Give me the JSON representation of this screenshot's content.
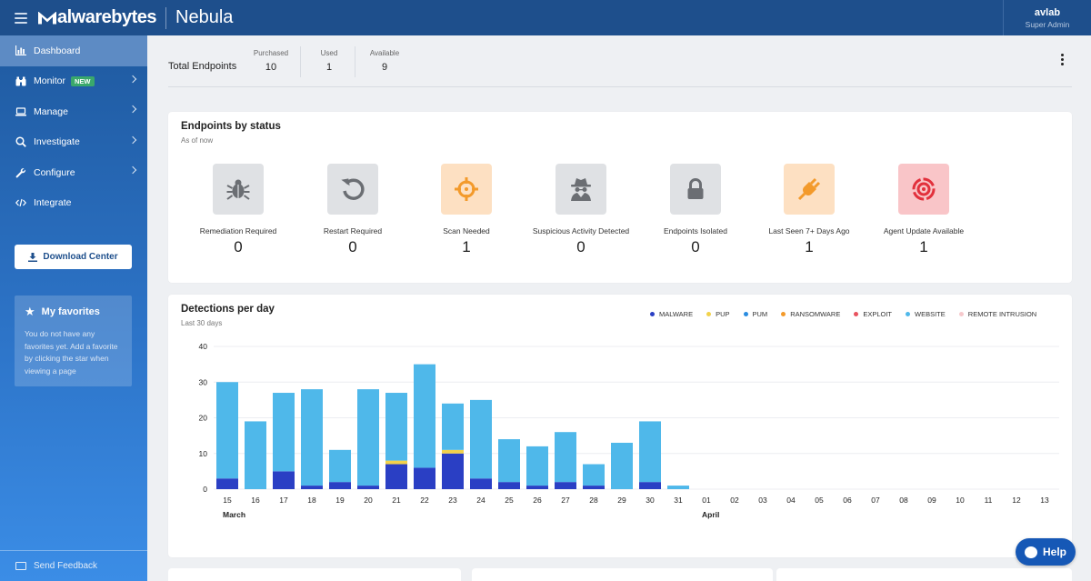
{
  "topbar": {
    "brand": "Malwarebytes",
    "brand_rest": "alwarebytes",
    "product": "Nebula",
    "user_name": "avlab",
    "user_role": "Super Admin"
  },
  "sidebar": {
    "items": [
      {
        "label": "Dashboard",
        "icon": "bar-chart-icon",
        "active": true
      },
      {
        "label": "Monitor",
        "icon": "binoculars-icon",
        "badge": "NEW"
      },
      {
        "label": "Manage",
        "icon": "laptop-icon"
      },
      {
        "label": "Investigate",
        "icon": "search-icon"
      },
      {
        "label": "Configure",
        "icon": "wrench-icon"
      },
      {
        "label": "Integrate",
        "icon": "code-icon"
      }
    ],
    "download_label": "Download Center",
    "favorites_title": "My favorites",
    "favorites_text": "You do not have any favorites yet. Add a favorite by clicking the star when viewing a page",
    "feedback_label": "Send Feedback"
  },
  "endpoints": {
    "title": "Total Endpoints",
    "purchased_label": "Purchased",
    "purchased_value": "10",
    "used_label": "Used",
    "used_value": "1",
    "available_label": "Available",
    "available_value": "9"
  },
  "status_card": {
    "title": "Endpoints by status",
    "subtitle": "As of now",
    "items": [
      {
        "label": "Remediation Required",
        "value": "0",
        "icon": "bug-icon",
        "bg": "#dfe1e4",
        "fg": "#6b6e73"
      },
      {
        "label": "Restart Required",
        "value": "0",
        "icon": "restart-icon",
        "bg": "#dfe1e4",
        "fg": "#6b6e73"
      },
      {
        "label": "Scan Needed",
        "value": "1",
        "icon": "crosshair-icon",
        "bg": "#fde0c2",
        "fg": "#f39a2b"
      },
      {
        "label": "Suspicious Activity Detected",
        "value": "0",
        "icon": "spy-icon",
        "bg": "#dfe1e4",
        "fg": "#6b6e73"
      },
      {
        "label": "Endpoints Isolated",
        "value": "0",
        "icon": "lock-icon",
        "bg": "#dfe1e4",
        "fg": "#6b6e73"
      },
      {
        "label": "Last Seen 7+ Days Ago",
        "value": "1",
        "icon": "plug-icon",
        "bg": "#fde0c2",
        "fg": "#f39a2b"
      },
      {
        "label": "Agent Update Available",
        "value": "1",
        "icon": "update-target-icon",
        "bg": "#f9c5c8",
        "fg": "#e2303c"
      }
    ]
  },
  "detections_card": {
    "title": "Detections per day",
    "subtitle": "Last 30 days"
  },
  "chart_data": {
    "type": "bar",
    "stacked": true,
    "categories": [
      "15",
      "16",
      "17",
      "18",
      "19",
      "20",
      "21",
      "22",
      "23",
      "24",
      "25",
      "26",
      "27",
      "28",
      "29",
      "30",
      "31",
      "01",
      "02",
      "03",
      "04",
      "05",
      "06",
      "07",
      "08",
      "09",
      "10",
      "11",
      "12",
      "13"
    ],
    "month_labels": [
      {
        "label": "March",
        "at": "15"
      },
      {
        "label": "April",
        "at": "01"
      }
    ],
    "ylim": [
      0,
      40
    ],
    "yticks": [
      0,
      10,
      20,
      30,
      40
    ],
    "grid": true,
    "legend_position": "top-right",
    "series": [
      {
        "name": "MALWARE",
        "color": "#2a3fc4",
        "values": [
          3,
          0,
          5,
          1,
          2,
          1,
          7,
          6,
          10,
          3,
          2,
          1,
          2,
          1,
          0,
          2,
          0,
          0,
          0,
          0,
          0,
          0,
          0,
          0,
          0,
          0,
          0,
          0,
          0,
          0
        ]
      },
      {
        "name": "PUP",
        "color": "#f2d24b",
        "values": [
          0,
          0,
          0,
          0,
          0,
          0,
          1,
          0,
          1,
          0,
          0,
          0,
          0,
          0,
          0,
          0,
          0,
          0,
          0,
          0,
          0,
          0,
          0,
          0,
          0,
          0,
          0,
          0,
          0,
          0
        ]
      },
      {
        "name": "PUM",
        "color": "#2a8ce0",
        "values": [
          0,
          0,
          0,
          0,
          0,
          0,
          0,
          0,
          0,
          0,
          0,
          0,
          0,
          0,
          0,
          0,
          0,
          0,
          0,
          0,
          0,
          0,
          0,
          0,
          0,
          0,
          0,
          0,
          0,
          0
        ]
      },
      {
        "name": "RANSOMWARE",
        "color": "#f39a2b",
        "values": [
          0,
          0,
          0,
          0,
          0,
          0,
          0,
          0,
          0,
          0,
          0,
          0,
          0,
          0,
          0,
          0,
          0,
          0,
          0,
          0,
          0,
          0,
          0,
          0,
          0,
          0,
          0,
          0,
          0,
          0
        ]
      },
      {
        "name": "EXPLOIT",
        "color": "#e8525e",
        "values": [
          0,
          0,
          0,
          0,
          0,
          0,
          0,
          0,
          0,
          0,
          0,
          0,
          0,
          0,
          0,
          0,
          0,
          0,
          0,
          0,
          0,
          0,
          0,
          0,
          0,
          0,
          0,
          0,
          0,
          0
        ]
      },
      {
        "name": "WEBSITE",
        "color": "#4fb8ea",
        "values": [
          27,
          19,
          22,
          27,
          9,
          27,
          19,
          29,
          13,
          22,
          12,
          11,
          14,
          6,
          13,
          17,
          1,
          0,
          0,
          0,
          0,
          0,
          0,
          0,
          0,
          0,
          0,
          0,
          0,
          0
        ]
      },
      {
        "name": "REMOTE INTRUSION",
        "color": "#f6c9cc",
        "values": [
          0,
          0,
          0,
          0,
          0,
          0,
          0,
          0,
          0,
          0,
          0,
          0,
          0,
          0,
          0,
          0,
          0,
          0,
          0,
          0,
          0,
          0,
          0,
          0,
          0,
          0,
          0,
          0,
          0,
          0
        ]
      }
    ]
  },
  "help_label": "Help"
}
